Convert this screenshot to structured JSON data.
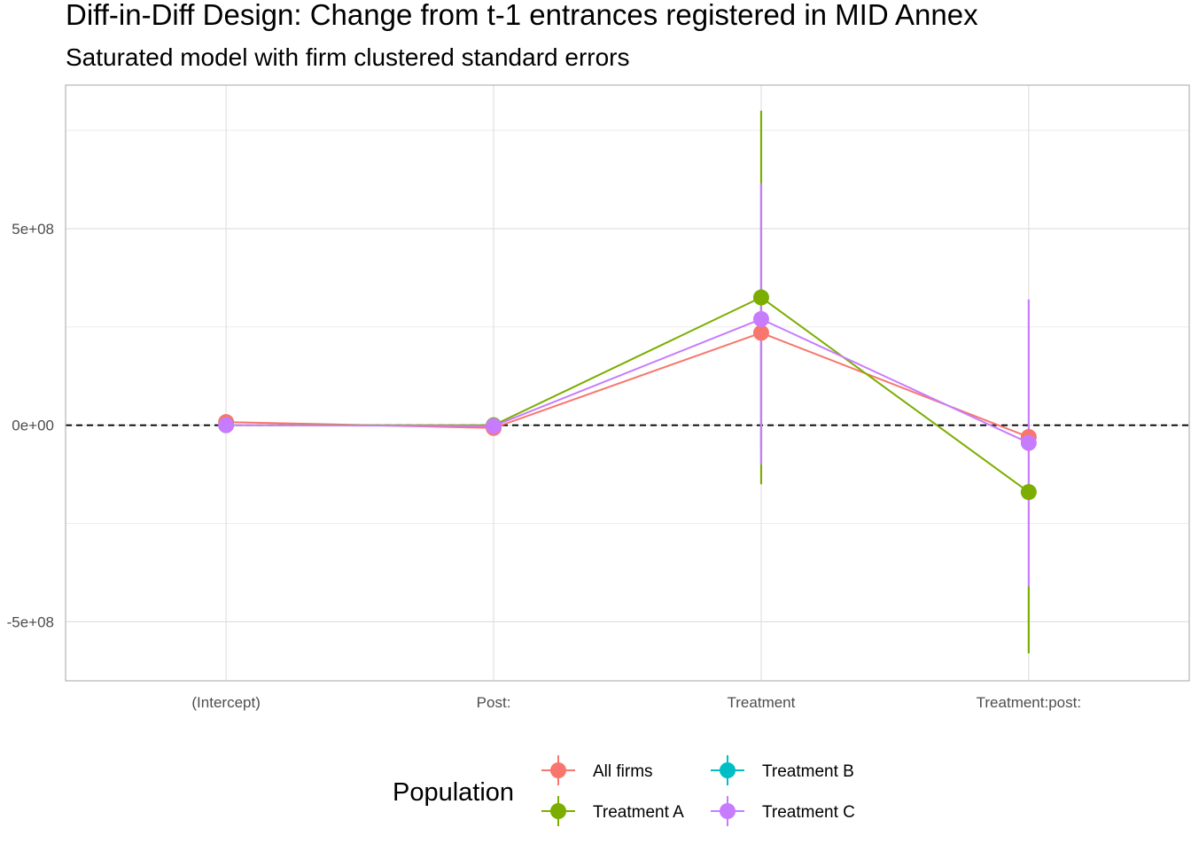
{
  "chart_data": {
    "type": "scatter",
    "title": "Diff-in-Diff Design: Change from t-1 entrances registered in MID Annex",
    "subtitle": "Saturated model with firm clustered standard errors",
    "xlabel": "",
    "ylabel": "",
    "categories": [
      "(Intercept)",
      "Post:",
      "Treatment",
      "Treatment:post:"
    ],
    "y_ticks": [
      -500000000,
      0,
      500000000
    ],
    "y_tick_labels": [
      "-5e+08",
      "0e+00",
      "5e+08"
    ],
    "ylim": [
      -650000000,
      865000000
    ],
    "grid": true,
    "reference_line": {
      "y": 0,
      "style": "dashed"
    },
    "legend": {
      "title": "Population",
      "position": "bottom"
    },
    "series": [
      {
        "name": "All firms",
        "color": "#F8766D",
        "values": [
          8000000,
          -7000000,
          235000000,
          -30000000
        ],
        "lower": [
          8000000,
          -7000000,
          -70000000,
          -30000000
        ],
        "upper": [
          8000000,
          -7000000,
          350000000,
          -30000000
        ]
      },
      {
        "name": "Treatment A",
        "color": "#7CAE00",
        "values": [
          0,
          0,
          325000000,
          -170000000
        ],
        "lower": [
          0,
          0,
          -150000000,
          -580000000
        ],
        "upper": [
          0,
          0,
          800000000,
          -410000000
        ]
      },
      {
        "name": "Treatment B",
        "color": "#00BFC4",
        "values": [
          null,
          null,
          null,
          null
        ],
        "lower": [
          null,
          null,
          null,
          null
        ],
        "upper": [
          null,
          null,
          null,
          null
        ]
      },
      {
        "name": "Treatment C",
        "color": "#C77CFF",
        "values": [
          0,
          -2000000,
          270000000,
          -45000000
        ],
        "lower": [
          0,
          -2000000,
          -100000000,
          -410000000
        ],
        "upper": [
          0,
          -2000000,
          615000000,
          320000000
        ]
      }
    ]
  }
}
